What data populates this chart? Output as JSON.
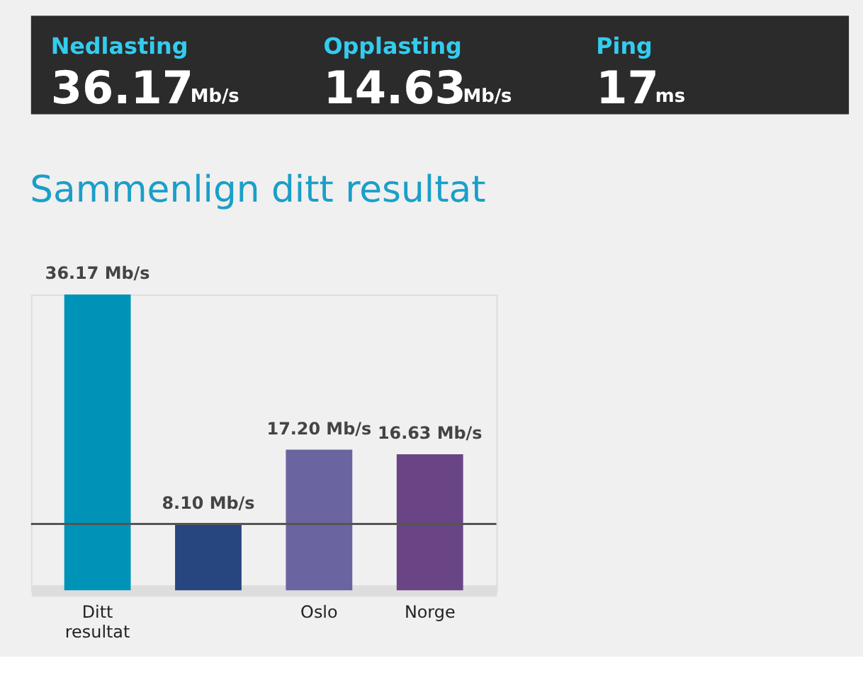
{
  "chart_data": [
    {
      "type": "other",
      "categories": [
        "Nedlasting",
        "Opplasting",
        "Ping"
      ],
      "value_labels": [
        "36.17",
        "14.63",
        "17"
      ],
      "annotations": [
        "Mb/s",
        "Mb/s",
        "ms"
      ]
    },
    {
      "type": "bar",
      "title": "Sammenlign ditt resultat",
      "categories": [
        "Ditt resultat",
        null,
        "Oslo",
        "Norge"
      ],
      "values": [
        36.17,
        8.1,
        17.2,
        16.63
      ],
      "colors": [
        "#0093b8",
        "#27457f",
        "#6a64a0",
        "#6a4585"
      ],
      "value_labels": [
        "36.17 Mb/s",
        "8.10 Mb/s",
        "17.20 Mb/s",
        "16.63 Mb/s"
      ],
      "ref_lines": [
        {
          "axis": "y",
          "value": 8.1,
          "color": "#555555"
        }
      ]
    }
  ]
}
